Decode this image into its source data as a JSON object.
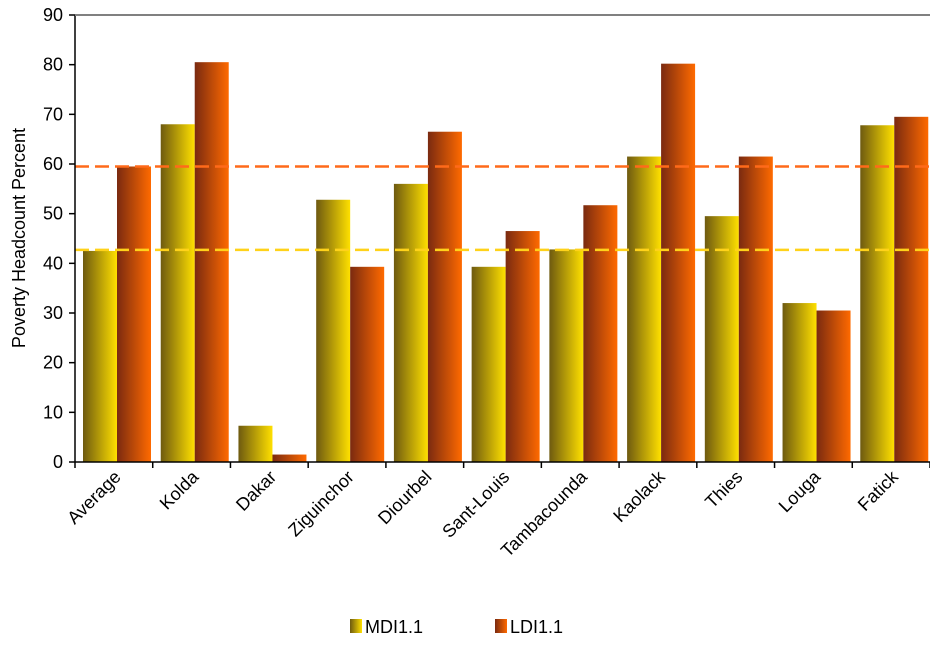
{
  "chart_data": {
    "type": "bar",
    "title": "",
    "xlabel": "",
    "ylabel": "Poverty Headcount Percent",
    "ylim": [
      0,
      90
    ],
    "yticks": [
      0,
      10,
      20,
      30,
      40,
      50,
      60,
      70,
      80,
      90
    ],
    "categories": [
      "Average",
      "Kolda",
      "Dakar",
      "Ziguinchor",
      "Diourbel",
      "Sant-Louis",
      "Tambacounda",
      "Kaolack",
      "Thies",
      "Louga",
      "Fatick"
    ],
    "series": [
      {
        "name": "MDI1.1",
        "values": [
          42.5,
          68,
          7.3,
          52.8,
          56,
          39.3,
          42.8,
          61.5,
          49.5,
          32,
          67.8
        ],
        "color_light": "#ffe000",
        "color_dark": "#6e5a10"
      },
      {
        "name": "LDI1.1",
        "values": [
          59.5,
          80.5,
          1.5,
          39.3,
          66.5,
          46.5,
          51.7,
          80.2,
          61.5,
          30.5,
          69.5
        ],
        "color_light": "#ff6a00",
        "color_dark": "#7a2a10"
      }
    ],
    "reference_lines": [
      {
        "value": 59.5,
        "color": "#ff6a1a"
      },
      {
        "value": 42.7,
        "color": "#ffd21a"
      }
    ],
    "legend_position": "bottom-center",
    "grid": false
  }
}
